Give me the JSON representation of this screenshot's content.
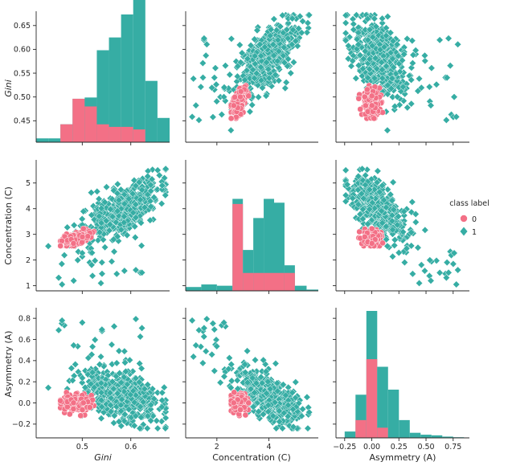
{
  "chart_data": {
    "type": "pairplot",
    "variables": [
      "Gini",
      "Concentration (C)",
      "Asymmetry (A)"
    ],
    "axis_labels": {
      "x": [
        "Gini",
        "Concentration (C)",
        "Asymmetry (A)"
      ],
      "y": [
        "Gini",
        "Concentration (C)",
        "Asymmetry (A)"
      ]
    },
    "ranges": [
      [
        0.405,
        0.68
      ],
      [
        0.8,
        5.9
      ],
      [
        -0.33,
        0.9
      ]
    ],
    "ticks": [
      {
        "values": [
          0.45,
          0.5,
          0.55,
          0.6,
          0.65
        ],
        "labels": [
          "0.45",
          "0.50",
          "0.55",
          "0.60",
          "0.65"
        ]
      },
      {
        "values": [
          1,
          2,
          3,
          4,
          5
        ],
        "labels": [
          "1",
          "2",
          "3",
          "4",
          "5"
        ]
      },
      {
        "values": [
          -0.2,
          0.0,
          0.2,
          0.4,
          0.6,
          0.8
        ],
        "labels": [
          "−0.2",
          "0.0",
          "0.2",
          "0.4",
          "0.6",
          "0.8"
        ]
      }
    ],
    "bottom_ticks": [
      {
        "values": [
          0.5,
          0.6
        ],
        "labels": [
          "0.5",
          "0.6"
        ]
      },
      {
        "values": [
          2,
          4
        ],
        "labels": [
          "2",
          "4"
        ]
      },
      {
        "values": [
          -0.25,
          0.0,
          0.25,
          0.5,
          0.75
        ],
        "labels": [
          "−0.25",
          "0.00",
          "0.25",
          "0.50",
          "0.75"
        ]
      }
    ],
    "legend": {
      "title": "class label",
      "entries": [
        {
          "label": "0",
          "color": "#f37086",
          "marker": "circle"
        },
        {
          "label": "1",
          "color": "#36ada4",
          "marker": "diamond"
        }
      ],
      "placement": "right-center"
    },
    "series_colors": {
      "class0": "#f37086",
      "class1": "#36ada4"
    },
    "point_counts": {
      "class0": 140,
      "class1": 520
    },
    "histograms": [
      {
        "variable": "Gini",
        "bins": [
          0.405,
          0.43,
          0.455,
          0.48,
          0.505,
          0.53,
          0.555,
          0.58,
          0.605,
          0.63,
          0.655,
          0.68
        ],
        "class1_top": [
          0.03,
          0.03,
          0.14,
          0.34,
          0.35,
          0.72,
          0.82,
          1.0,
          1.25,
          0.48,
          0.19
        ],
        "class0_top": [
          0,
          0,
          0.14,
          0.34,
          0.28,
          0.14,
          0.12,
          0.12,
          0.1,
          0,
          0
        ]
      },
      {
        "variable": "Concentration (C)",
        "bins": [
          0.8,
          1.4,
          2.0,
          2.6,
          3.0,
          3.4,
          3.8,
          4.2,
          4.6,
          5.0,
          5.45,
          5.9
        ],
        "class1_top": [
          0.03,
          0.05,
          0.04,
          0.72,
          0.32,
          0.57,
          0.72,
          0.69,
          0.2,
          0.04,
          0.01
        ],
        "class0_top": [
          0,
          0,
          0,
          0.68,
          0.14,
          0.14,
          0.14,
          0.14,
          0.14,
          0,
          0
        ]
      },
      {
        "variable": "Asymmetry (A)",
        "bins": [
          -0.25,
          -0.15,
          -0.05,
          0.05,
          0.15,
          0.25,
          0.35,
          0.45,
          0.55,
          0.65,
          0.75,
          0.85
        ],
        "class1_top": [
          0.05,
          0.34,
          1.0,
          0.56,
          0.38,
          0.14,
          0.04,
          0.025,
          0.02,
          0.01,
          0.005
        ],
        "class0_top": [
          0,
          0.14,
          0.62,
          0.08,
          0,
          0,
          0,
          0,
          0,
          0,
          0
        ]
      }
    ],
    "clusters": {
      "class1": {
        "mean": [
          0.58,
          3.9,
          0.08
        ],
        "sd": [
          0.038,
          0.6,
          0.13
        ]
      },
      "class0": {
        "mean": [
          0.485,
          2.85,
          0.0
        ],
        "sd": [
          0.018,
          0.17,
          0.045
        ]
      }
    }
  }
}
